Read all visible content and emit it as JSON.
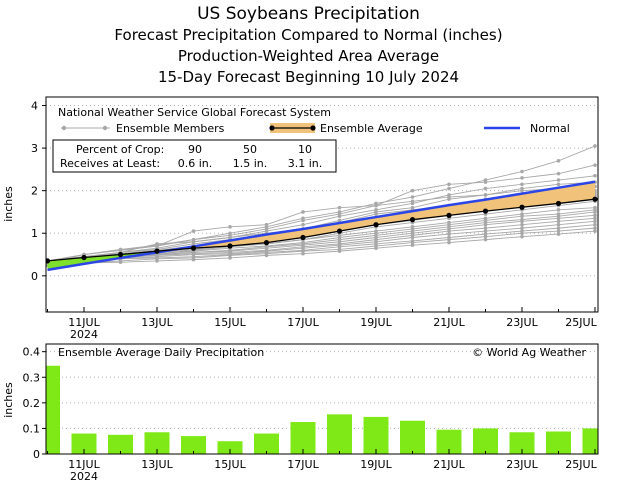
{
  "titles": {
    "title": "US Soybeans Precipitation",
    "sub1": "Forecast Precipitation Compared to Normal (inches)",
    "sub2": "Production-Weighted Area Average",
    "sub3": "15-Day Forecast Beginning 10 July 2024"
  },
  "legend": {
    "title": "National Weather Service Global Forecast System",
    "members": "Ensemble Members",
    "average": "Ensemble Average",
    "normal": "Normal",
    "crop_row1_label": "Percent of Crop:",
    "crop_row1_values": [
      "90",
      "50",
      "10"
    ],
    "crop_row2_label": "Receives at Least:",
    "crop_row2_values": [
      "0.6 in.",
      "1.5 in.",
      "3.1 in."
    ]
  },
  "bottom_legend": {
    "title": "Ensemble Average Daily Precipitation",
    "credit": "© World Ag Weather"
  },
  "colors": {
    "members": "#a8a8a8",
    "average": "#000000",
    "band_fill": "#f0c27a",
    "band_fill_low": "#7ee02a",
    "normal": "#2b45e6",
    "bars": "#7fe817"
  },
  "chart_data": [
    {
      "type": "line",
      "ylabel": "inches",
      "ylim": [
        -0.85,
        4.2
      ],
      "yticks": [
        0,
        1,
        2,
        3,
        4
      ],
      "xticks": [
        {
          "label": "11JUL",
          "sub": "2024"
        },
        {
          "label": "13JUL",
          "sub": ""
        },
        {
          "label": "15JUL",
          "sub": ""
        },
        {
          "label": "17JUL",
          "sub": ""
        },
        {
          "label": "19JUL",
          "sub": ""
        },
        {
          "label": "21JUL",
          "sub": ""
        },
        {
          "label": "23JUL",
          "sub": ""
        },
        {
          "label": "25JUL",
          "sub": ""
        }
      ],
      "days": [
        "10JUL",
        "11JUL",
        "12JUL",
        "13JUL",
        "14JUL",
        "15JUL",
        "16JUL",
        "17JUL",
        "18JUL",
        "19JUL",
        "20JUL",
        "21JUL",
        "22JUL",
        "23JUL",
        "24JUL",
        "25JUL"
      ],
      "normal": [
        0.14,
        0.28,
        0.42,
        0.55,
        0.69,
        0.83,
        0.97,
        1.1,
        1.24,
        1.38,
        1.52,
        1.66,
        1.79,
        1.93,
        2.07,
        2.21
      ],
      "ensemble_average": [
        0.35,
        0.43,
        0.5,
        0.58,
        0.65,
        0.7,
        0.78,
        0.9,
        1.05,
        1.2,
        1.32,
        1.42,
        1.52,
        1.61,
        1.7,
        1.8
      ],
      "members": [
        [
          0.3,
          0.5,
          0.6,
          0.7,
          0.85,
          1.0,
          1.15,
          1.35,
          1.5,
          1.7,
          1.85,
          2.05,
          2.25,
          2.45,
          2.7,
          3.05
        ],
        [
          0.35,
          0.5,
          0.62,
          0.72,
          0.85,
          0.95,
          1.1,
          1.3,
          1.45,
          1.65,
          2.0,
          2.15,
          2.2,
          2.3,
          2.4,
          2.6
        ],
        [
          0.35,
          0.45,
          0.55,
          0.65,
          0.8,
          0.9,
          1.05,
          1.2,
          1.4,
          1.55,
          1.7,
          1.9,
          2.05,
          2.15,
          2.25,
          2.35
        ],
        [
          0.3,
          0.45,
          0.55,
          0.62,
          0.75,
          0.85,
          0.95,
          1.1,
          1.3,
          1.5,
          1.6,
          1.8,
          1.9,
          2.05,
          2.15,
          2.2
        ],
        [
          0.35,
          0.45,
          0.52,
          0.6,
          0.7,
          0.8,
          0.95,
          1.05,
          1.2,
          1.35,
          1.5,
          1.65,
          1.8,
          1.9,
          2.0,
          2.1
        ],
        [
          0.35,
          0.42,
          0.5,
          0.58,
          0.68,
          0.75,
          0.85,
          1.0,
          1.15,
          1.3,
          1.45,
          1.55,
          1.65,
          1.8,
          1.9,
          2.0
        ],
        [
          0.3,
          0.4,
          0.5,
          0.55,
          0.65,
          0.72,
          0.8,
          0.95,
          1.1,
          1.25,
          1.35,
          1.5,
          1.6,
          1.7,
          1.8,
          1.9
        ],
        [
          0.35,
          0.42,
          0.48,
          0.55,
          0.62,
          0.7,
          0.8,
          0.9,
          1.05,
          1.2,
          1.3,
          1.42,
          1.55,
          1.65,
          1.75,
          1.85
        ],
        [
          0.3,
          0.4,
          0.45,
          0.52,
          0.6,
          0.68,
          0.75,
          0.85,
          1.0,
          1.15,
          1.25,
          1.35,
          1.45,
          1.55,
          1.65,
          1.75
        ],
        [
          0.35,
          0.42,
          0.5,
          0.58,
          0.65,
          0.7,
          0.75,
          0.85,
          0.95,
          1.05,
          1.15,
          1.25,
          1.35,
          1.45,
          1.55,
          1.6
        ],
        [
          0.3,
          0.38,
          0.45,
          0.52,
          0.58,
          0.65,
          0.7,
          0.78,
          0.9,
          1.0,
          1.1,
          1.2,
          1.3,
          1.4,
          1.45,
          1.55
        ],
        [
          0.3,
          0.38,
          0.45,
          0.5,
          0.55,
          0.6,
          0.68,
          0.75,
          0.85,
          0.95,
          1.05,
          1.15,
          1.25,
          1.32,
          1.4,
          1.5
        ],
        [
          0.35,
          0.4,
          0.45,
          0.5,
          0.55,
          0.58,
          0.65,
          0.72,
          0.8,
          0.9,
          1.0,
          1.1,
          1.2,
          1.28,
          1.35,
          1.42
        ],
        [
          0.3,
          0.35,
          0.42,
          0.48,
          0.52,
          0.55,
          0.6,
          0.68,
          0.75,
          0.85,
          0.95,
          1.05,
          1.12,
          1.2,
          1.28,
          1.35
        ],
        [
          0.3,
          0.35,
          0.4,
          0.45,
          0.5,
          0.52,
          0.58,
          0.65,
          0.72,
          0.8,
          0.9,
          0.98,
          1.05,
          1.12,
          1.2,
          1.28
        ],
        [
          0.3,
          0.35,
          0.4,
          0.42,
          0.45,
          0.5,
          0.55,
          0.6,
          0.68,
          0.75,
          0.82,
          0.9,
          0.98,
          1.05,
          1.12,
          1.2
        ],
        [
          0.25,
          0.3,
          0.35,
          0.4,
          0.42,
          0.48,
          0.52,
          0.58,
          0.62,
          0.7,
          0.78,
          0.85,
          0.92,
          1.0,
          1.05,
          1.12
        ],
        [
          0.25,
          0.3,
          0.32,
          0.35,
          0.38,
          0.42,
          0.48,
          0.52,
          0.58,
          0.65,
          0.72,
          0.78,
          0.85,
          0.92,
          0.98,
          1.05
        ],
        [
          0.35,
          0.5,
          0.6,
          0.7,
          1.05,
          1.15,
          1.2,
          1.5,
          1.6,
          1.65,
          1.75,
          1.85,
          1.9,
          2.0,
          2.05,
          2.1
        ],
        [
          0.3,
          0.45,
          0.55,
          0.75,
          0.8,
          0.9,
          1.0,
          1.1,
          1.25,
          1.45,
          1.55,
          1.65,
          1.75,
          1.8,
          1.85,
          1.95
        ]
      ]
    },
    {
      "type": "bar",
      "ylabel": "inches",
      "ylim": [
        0,
        0.43
      ],
      "yticks": [
        0,
        0.1,
        0.2,
        0.3,
        0.4
      ],
      "ytick_labels": [
        "0",
        "0.1",
        "0.2",
        "0.3",
        "0.4"
      ],
      "categories": [
        "10JUL",
        "11JUL",
        "12JUL",
        "13JUL",
        "14JUL",
        "15JUL",
        "16JUL",
        "17JUL",
        "18JUL",
        "19JUL",
        "20JUL",
        "21JUL",
        "22JUL",
        "23JUL",
        "24JUL",
        "25JUL"
      ],
      "values": [
        0.345,
        0.08,
        0.075,
        0.085,
        0.07,
        0.05,
        0.08,
        0.125,
        0.155,
        0.145,
        0.13,
        0.095,
        0.1,
        0.085,
        0.088,
        0.1
      ],
      "xticks": [
        {
          "label": "11JUL",
          "sub": "2024"
        },
        {
          "label": "13JUL",
          "sub": ""
        },
        {
          "label": "15JUL",
          "sub": ""
        },
        {
          "label": "17JUL",
          "sub": ""
        },
        {
          "label": "19JUL",
          "sub": ""
        },
        {
          "label": "21JUL",
          "sub": ""
        },
        {
          "label": "23JUL",
          "sub": ""
        },
        {
          "label": "25JUL",
          "sub": ""
        }
      ]
    }
  ]
}
